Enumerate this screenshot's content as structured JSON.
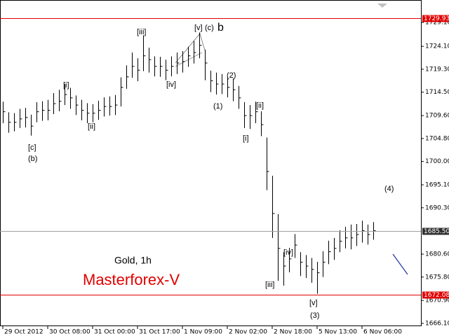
{
  "chart_data": {
    "type": "hlc",
    "categories": [
      "29 Oct 2012",
      null,
      null,
      null,
      null,
      null,
      null,
      null,
      "30 Oct 08:00",
      null,
      null,
      null,
      null,
      null,
      null,
      null,
      "31 Oct 00:00",
      null,
      null,
      null,
      null,
      null,
      null,
      null,
      "31 Oct 17:00",
      null,
      null,
      null,
      null,
      null,
      null,
      null,
      "1 Nov 09:00",
      null,
      null,
      null,
      null,
      null,
      null,
      null,
      "2 Nov 02:00",
      null,
      null,
      null,
      null,
      null,
      null,
      null,
      "2 Nov 18:00",
      null,
      null,
      null,
      null,
      null,
      null,
      null,
      "5 Nov 13:00",
      null,
      null,
      null,
      null,
      null,
      null,
      null,
      "6 Nov 06:00",
      null,
      null
    ],
    "high": [
      1712.5,
      1710.3,
      1710.1,
      1711.0,
      1711.2,
      1709.8,
      1712.4,
      1712.6,
      1712.9,
      1714.3,
      1715.0,
      1716.2,
      1715.4,
      1713.8,
      1712.9,
      1712.2,
      1712.0,
      1712.7,
      1713.4,
      1713.6,
      1713.9,
      1717.6,
      1720.1,
      1722.8,
      1721.6,
      1726.4,
      1723.8,
      1722.0,
      1721.9,
      1721.3,
      1722.0,
      1722.8,
      1723.1,
      1724.0,
      1725.2,
      1727.0,
      1723.4,
      1719.0,
      1718.6,
      1718.3,
      1717.6,
      1717.4,
      1715.8,
      1712.4,
      1711.8,
      1712.5,
      1710.5,
      1705.0,
      1697.0,
      1689.0,
      1681.0,
      1681.9,
      1684.8,
      1681.0,
      1680.4,
      1679.8,
      1679.0,
      1681.2,
      1683.4,
      1684.0,
      1685.6,
      1686.3,
      1686.8,
      1686.9,
      1687.6,
      1686.8,
      1687.3
    ],
    "low": [
      1708.0,
      1706.0,
      1706.3,
      1707.0,
      1707.1,
      1705.4,
      1708.2,
      1708.5,
      1708.6,
      1709.9,
      1710.5,
      1711.8,
      1711.0,
      1709.7,
      1708.6,
      1708.0,
      1708.2,
      1708.7,
      1709.4,
      1709.6,
      1709.7,
      1711.5,
      1715.2,
      1717.5,
      1716.8,
      1718.9,
      1718.6,
      1717.8,
      1717.7,
      1717.0,
      1717.8,
      1718.3,
      1718.6,
      1719.8,
      1720.5,
      1721.6,
      1717.0,
      1714.5,
      1714.0,
      1714.1,
      1713.4,
      1712.6,
      1711.0,
      1707.0,
      1706.8,
      1708.0,
      1705.3,
      1694.0,
      1684.0,
      1675.0,
      1674.0,
      1676.8,
      1679.8,
      1676.0,
      1675.6,
      1674.6,
      1672.3,
      1675.8,
      1678.5,
      1679.4,
      1681.0,
      1681.8,
      1681.6,
      1682.3,
      1683.0,
      1682.6,
      1683.6
    ],
    "close": [
      1710.4,
      1708.2,
      1708.2,
      1708.9,
      1709.2,
      1707.4,
      1710.4,
      1710.7,
      1710.7,
      1712.1,
      1712.6,
      1714.0,
      1713.3,
      1711.8,
      1710.7,
      1710.1,
      1710.1,
      1710.7,
      1711.5,
      1711.5,
      1711.8,
      1715.5,
      1717.7,
      1719.9,
      1719.1,
      1722.1,
      1721.3,
      1719.9,
      1719.9,
      1719.1,
      1719.9,
      1720.6,
      1720.9,
      1722.1,
      1722.8,
      1724.3,
      1720.6,
      1716.9,
      1716.2,
      1716.2,
      1715.5,
      1715.0,
      1713.3,
      1709.6,
      1709.6,
      1710.4,
      1707.7,
      1697.9,
      1689.1,
      1681.8,
      1678.1,
      1679.6,
      1682.5,
      1678.9,
      1678.1,
      1677.4,
      1676.7,
      1678.9,
      1681.1,
      1681.8,
      1683.3,
      1684.0,
      1684.0,
      1684.7,
      1685.5,
      1684.7,
      1685.5
    ],
    "color": "#000000",
    "ylim": [
      1666.1,
      1729.1
    ],
    "yticks": [
      {
        "value": 1729.1,
        "label": "1729.10"
      },
      {
        "value": 1724.1,
        "label": "1724.10"
      },
      {
        "value": 1719.3,
        "label": "1719.30"
      },
      {
        "value": 1714.5,
        "label": "1714.50"
      },
      {
        "value": 1709.6,
        "label": "1709.60"
      },
      {
        "value": 1704.8,
        "label": "1704.80"
      },
      {
        "value": 1700,
        "label": "1700.00"
      },
      {
        "value": 1695.1,
        "label": "1695.10"
      },
      {
        "value": 1690.3,
        "label": "1690.30"
      },
      {
        "value": 1680.6,
        "label": "1680.60"
      },
      {
        "value": 1675.8,
        "label": "1675.80"
      },
      {
        "value": 1670.9,
        "label": "1670.90"
      },
      {
        "value": 1666.1,
        "label": "1666.10"
      }
    ],
    "levels": [
      {
        "value": 1729.93,
        "label": "1729.93",
        "color": "#e00000"
      },
      {
        "value": 1672.08,
        "label": "1672.08",
        "color": "#e00000"
      },
      {
        "value": 1685.5,
        "label": "1685.50",
        "color": "#a0a0a0"
      }
    ],
    "annotations": [
      "[c]",
      "(b)",
      "[i]",
      "[ii]",
      "[iii]",
      "[iv]",
      "[v]",
      "(c)",
      "b",
      "(1)",
      "(2)",
      "[i]",
      "[ii]",
      "[iii]",
      "[iv]",
      "[v]",
      "(3)",
      "(4)",
      "Gold, 1h",
      "Masterforex-V"
    ]
  }
}
